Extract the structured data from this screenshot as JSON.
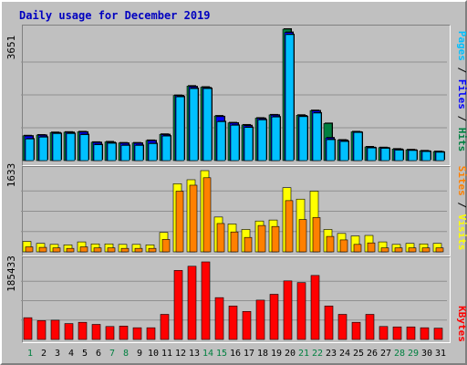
{
  "chart_data": {
    "type": "bar",
    "title": "Daily usage for December 2019",
    "separator": " / ",
    "categories": [
      "1",
      "2",
      "3",
      "4",
      "5",
      "6",
      "7",
      "8",
      "9",
      "10",
      "11",
      "12",
      "13",
      "14",
      "15",
      "16",
      "17",
      "18",
      "19",
      "20",
      "21",
      "22",
      "23",
      "24",
      "25",
      "26",
      "27",
      "28",
      "29",
      "30",
      "31"
    ],
    "weekend_days": [
      "1",
      "7",
      "8",
      "14",
      "15",
      "21",
      "22",
      "28",
      "29"
    ],
    "colors": {
      "hits": "#008040",
      "files": "#0000ff",
      "pages": "#00c0ff",
      "visits": "#ffff00",
      "sites": "#ff8000",
      "kbytes": "#ff0000",
      "weekday_label": "#000000",
      "weekend_label": "#008040",
      "gridline": "#909090"
    },
    "panels": [
      {
        "max_label": "3651",
        "ylim": [
          0,
          3651
        ],
        "series": [
          "hits",
          "files",
          "pages"
        ]
      },
      {
        "max_label": "1633",
        "ylim": [
          0,
          1633
        ],
        "series": [
          "visits",
          "sites"
        ]
      },
      {
        "max_label": "185433",
        "ylim": [
          0,
          185433
        ],
        "series": [
          "kbytes"
        ]
      }
    ],
    "series": [
      {
        "key": "pages",
        "name": "Pages",
        "values": [
          600,
          650,
          750,
          750,
          720,
          440,
          480,
          420,
          420,
          470,
          680,
          1770,
          2000,
          2000,
          1080,
          980,
          920,
          1130,
          1210,
          3500,
          1220,
          1320,
          580,
          530,
          780,
          350,
          340,
          290,
          280,
          250,
          230
        ]
      },
      {
        "key": "files",
        "name": "Files",
        "values": [
          680,
          700,
          770,
          780,
          790,
          500,
          500,
          480,
          480,
          550,
          720,
          1800,
          2050,
          2020,
          1220,
          1040,
          970,
          1170,
          1260,
          3560,
          1240,
          1380,
          630,
          560,
          790,
          360,
          350,
          310,
          290,
          260,
          240
        ]
      },
      {
        "key": "hits",
        "name": "Hits",
        "values": [
          690,
          710,
          780,
          790,
          800,
          510,
          520,
          490,
          490,
          560,
          730,
          1810,
          2070,
          2040,
          1240,
          1050,
          990,
          1180,
          1270,
          3651,
          1260,
          1390,
          1030,
          570,
          800,
          380,
          360,
          320,
          300,
          270,
          250
        ]
      },
      {
        "key": "visits",
        "name": "Visits",
        "values": [
          210,
          170,
          150,
          140,
          200,
          160,
          160,
          150,
          150,
          140,
          390,
          1370,
          1450,
          1633,
          700,
          560,
          450,
          620,
          640,
          1290,
          1060,
          1220,
          450,
          370,
          320,
          330,
          200,
          150,
          170,
          160,
          170
        ]
      },
      {
        "key": "sites",
        "name": "Sites",
        "values": [
          100,
          90,
          80,
          70,
          100,
          80,
          80,
          70,
          70,
          70,
          250,
          1220,
          1340,
          1490,
          570,
          400,
          290,
          530,
          510,
          1030,
          650,
          690,
          310,
          240,
          150,
          180,
          80,
          80,
          80,
          80,
          80
        ]
      },
      {
        "key": "kbytes",
        "name": "KBytes",
        "values": [
          52000,
          45000,
          46000,
          38000,
          41000,
          36000,
          31000,
          32000,
          28000,
          28000,
          60000,
          165000,
          175000,
          185433,
          100000,
          80000,
          67000,
          94000,
          108000,
          140000,
          136000,
          153000,
          80000,
          60000,
          41000,
          60000,
          31000,
          30000,
          30000,
          28000,
          27000
        ]
      }
    ]
  }
}
